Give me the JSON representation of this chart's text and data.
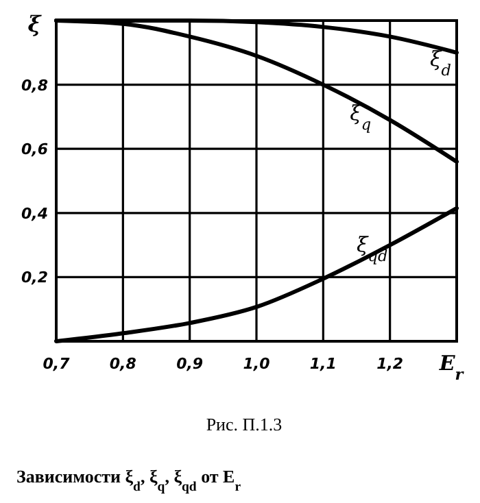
{
  "chart_data": {
    "type": "line",
    "title": "Рис. П.1.3",
    "subtitle": "Зависимости ξ$_{d}$, ξ$_{q}$, ξ$_{qd}$ от E$_{r}$",
    "xlabel": "E$_{r}$",
    "ylabel": "ξ",
    "x": [
      0.7,
      0.8,
      0.9,
      1.0,
      1.1,
      1.2,
      1.3
    ],
    "series": [
      {
        "name": "ξ$_{d}$",
        "color": "#000000",
        "values": [
          1.0,
          1.0,
          1.0,
          0.995,
          0.98,
          0.95,
          0.9
        ]
      },
      {
        "name": "ξ$_{q}$",
        "color": "#000000",
        "values": [
          1.0,
          0.99,
          0.95,
          0.89,
          0.8,
          0.69,
          0.56
        ]
      },
      {
        "name": "ξ$_{qd}$",
        "color": "#000000",
        "values": [
          0.0,
          0.025,
          0.057,
          0.107,
          0.195,
          0.3,
          0.415
        ]
      }
    ],
    "xlim": [
      0.7,
      1.3
    ],
    "ylim": [
      0,
      1
    ],
    "xticks": [
      {
        "value": 0.7,
        "label": "0,7"
      },
      {
        "value": 0.8,
        "label": "0,8"
      },
      {
        "value": 0.9,
        "label": "0,9"
      },
      {
        "value": 1.0,
        "label": "1,0"
      },
      {
        "value": 1.1,
        "label": "1,1"
      },
      {
        "value": 1.2,
        "label": "1,2"
      }
    ],
    "yticks": [
      {
        "value": 0.2,
        "label": "0,2"
      },
      {
        "value": 0.4,
        "label": "0,4"
      },
      {
        "value": 0.6,
        "label": "0,6"
      },
      {
        "value": 0.8,
        "label": "0,8"
      }
    ],
    "grid": true,
    "marker": "none",
    "line_style": "solid"
  }
}
